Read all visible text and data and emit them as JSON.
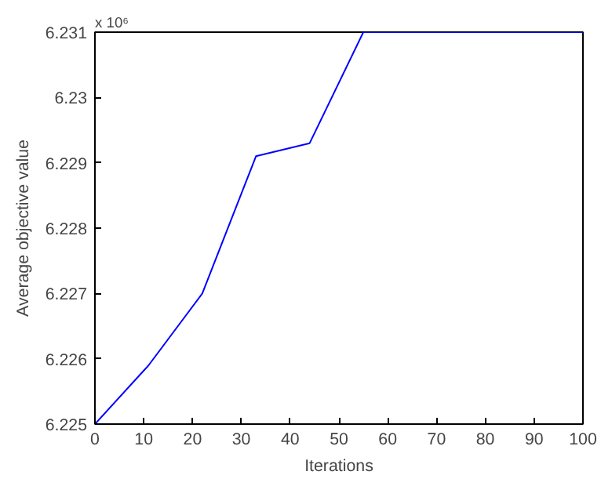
{
  "chart_data": {
    "type": "line",
    "xlabel": "Iterations",
    "ylabel": "Average objective value",
    "annotations": [
      "x 10⁶"
    ],
    "x": [
      0,
      11,
      22,
      33,
      44,
      55,
      100
    ],
    "series": [
      {
        "color": "#0000ff",
        "values": [
          6.225,
          6.2259,
          6.227,
          6.2291,
          6.2293,
          6.231,
          6.231
        ]
      }
    ],
    "xlim": [
      0,
      100
    ],
    "xticks": [
      0,
      10,
      20,
      30,
      40,
      50,
      60,
      70,
      80,
      90,
      100
    ],
    "ylim": [
      6.225,
      6.231
    ],
    "yticks": [
      6.225,
      6.226,
      6.227,
      6.228,
      6.229,
      6.23,
      6.231
    ],
    "grid": false,
    "marker": "none",
    "line_style": "solid"
  }
}
